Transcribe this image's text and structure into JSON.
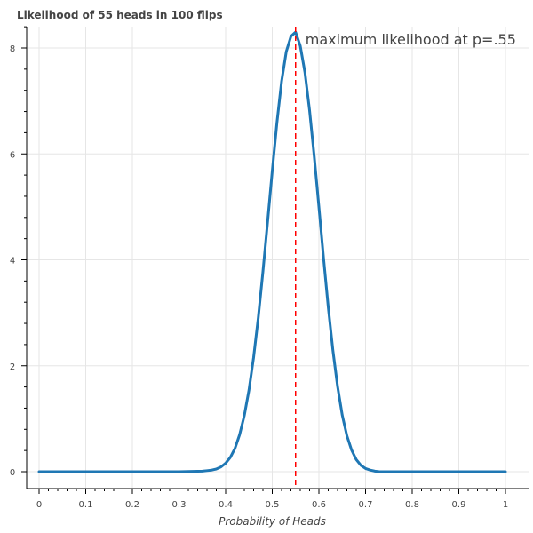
{
  "chart_data": {
    "type": "line",
    "title": "Likelihood of 55 heads in 100 flips",
    "xlabel": "Probability of Heads",
    "ylabel": "",
    "xlim": [
      0,
      1
    ],
    "ylim": [
      0,
      8.4
    ],
    "x_ticks": [
      0,
      0.1,
      0.2,
      0.3,
      0.4,
      0.5,
      0.6,
      0.7,
      0.8,
      0.9,
      1
    ],
    "x_tick_labels": [
      "0",
      "0.1",
      "0.2",
      "0.3",
      "0.4",
      "0.5",
      "0.6",
      "0.7",
      "0.8",
      "0.9",
      "1"
    ],
    "y_ticks": [
      0,
      2,
      4,
      6,
      8
    ],
    "y_tick_labels": [
      "0",
      "2",
      "4",
      "6",
      "8"
    ],
    "grid": true,
    "series": [
      {
        "color": "#1f77b4",
        "x": [
          0,
          0.05,
          0.1,
          0.15,
          0.2,
          0.25,
          0.3,
          0.35,
          0.36,
          0.37,
          0.38,
          0.39,
          0.4,
          0.41,
          0.42,
          0.43,
          0.44,
          0.45,
          0.46,
          0.47,
          0.48,
          0.49,
          0.5,
          0.51,
          0.52,
          0.53,
          0.54,
          0.55,
          0.56,
          0.57,
          0.58,
          0.59,
          0.6,
          0.61,
          0.62,
          0.63,
          0.64,
          0.65,
          0.66,
          0.67,
          0.68,
          0.69,
          0.7,
          0.71,
          0.72,
          0.73,
          0.74,
          0.75,
          0.8,
          0.85,
          0.9,
          0.95,
          1
        ],
        "y": [
          0,
          0,
          0,
          0,
          0,
          0,
          0.0,
          0.01,
          0.02,
          0.03,
          0.05,
          0.09,
          0.16,
          0.27,
          0.44,
          0.7,
          1.06,
          1.54,
          2.16,
          2.91,
          3.78,
          4.72,
          5.68,
          6.59,
          7.37,
          7.93,
          8.22,
          8.3,
          8.04,
          7.54,
          6.82,
          5.95,
          5.0,
          4.03,
          3.11,
          2.29,
          1.61,
          1.07,
          0.68,
          0.41,
          0.23,
          0.12,
          0.06,
          0.03,
          0.01,
          0.0,
          0.0,
          0,
          0,
          0,
          0,
          0,
          0
        ]
      }
    ],
    "vline": {
      "x": 0.55,
      "color": "#ff0000",
      "style": "dashed"
    },
    "annotation": {
      "text": "maximum likelihood at p=.55",
      "x": 0.55,
      "y": 8.0
    }
  }
}
